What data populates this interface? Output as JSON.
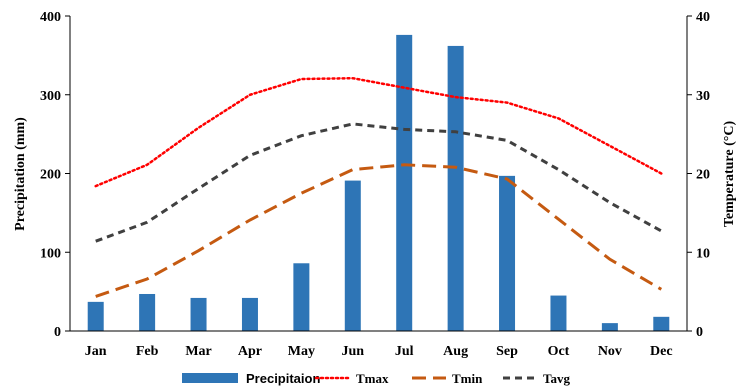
{
  "chart_data": {
    "type": "bar+line",
    "categories": [
      "Jan",
      "Feb",
      "Mar",
      "Apr",
      "May",
      "Jun",
      "Jul",
      "Aug",
      "Sep",
      "Oct",
      "Nov",
      "Dec"
    ],
    "y_left": {
      "label": "Precipitation (mm)",
      "range": [
        0,
        400
      ],
      "ticks": [
        0,
        100,
        200,
        300,
        400
      ]
    },
    "y_right": {
      "label": "Temperature (°C)",
      "range": [
        0,
        40
      ],
      "ticks": [
        0,
        10,
        20,
        30,
        40
      ]
    },
    "grid": false,
    "legend_position": "bottom",
    "series": [
      {
        "name": "Precipitaion",
        "type": "bar",
        "axis": "left",
        "color": "#2E75B6",
        "values": [
          37,
          47,
          42,
          42,
          86,
          191,
          376,
          362,
          197,
          45,
          10,
          18
        ]
      },
      {
        "name": "Tmax",
        "type": "line",
        "axis": "right",
        "color": "#FF0000",
        "dash": "dotted",
        "values": [
          18.4,
          21.1,
          25.8,
          30.0,
          32.0,
          32.1,
          30.9,
          29.7,
          29.0,
          27.0,
          23.5,
          20.0
        ]
      },
      {
        "name": "Tmin",
        "type": "line",
        "axis": "right",
        "color": "#C55A11",
        "dash": "long-dash",
        "values": [
          4.4,
          6.6,
          10.2,
          14.1,
          17.5,
          20.5,
          21.1,
          20.8,
          19.3,
          14.2,
          9.1,
          5.3
        ]
      },
      {
        "name": "Tavg",
        "type": "line",
        "axis": "right",
        "color": "#404040",
        "dash": "dash",
        "values": [
          11.4,
          13.8,
          18.1,
          22.3,
          24.8,
          26.3,
          25.6,
          25.3,
          24.2,
          20.5,
          16.3,
          12.7
        ]
      }
    ]
  }
}
